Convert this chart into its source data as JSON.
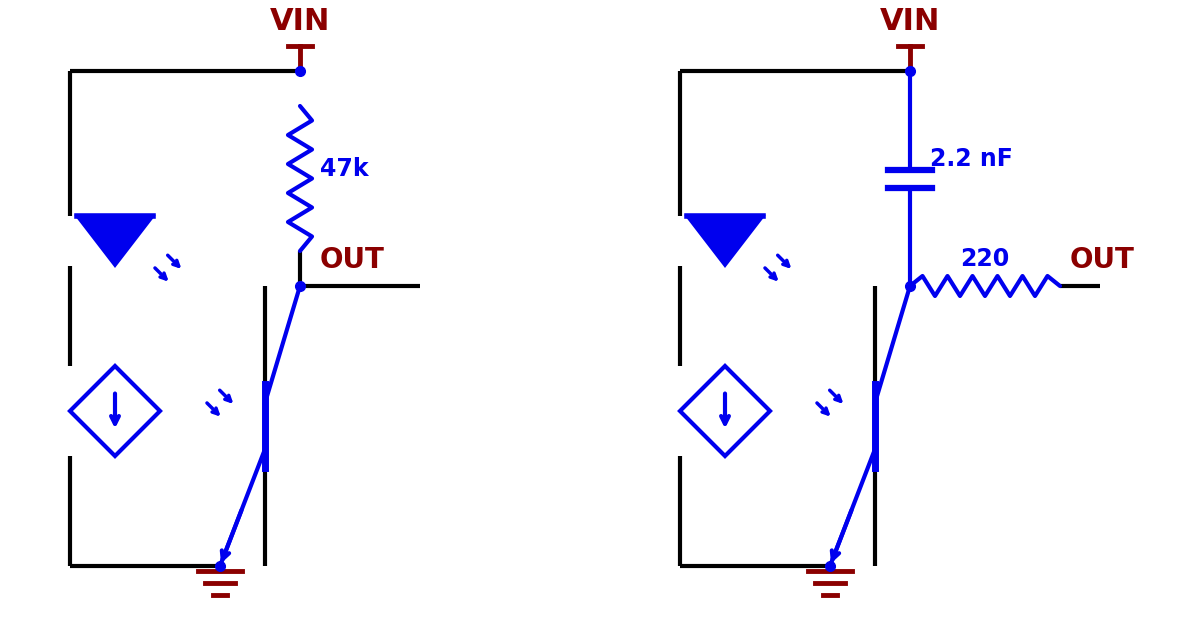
{
  "background_color": "#ffffff",
  "blue": "#0000ee",
  "dark_red": "#8b0000",
  "black": "#000000",
  "line_width": 3.0,
  "wire_lw": 3.0,
  "dot_size": 7,
  "fig_width": 12.0,
  "fig_height": 6.21,
  "label_47k": "47k",
  "label_out": "OUT",
  "label_vin": "VIN",
  "label_cap": "2.2 nF",
  "label_res": "220"
}
